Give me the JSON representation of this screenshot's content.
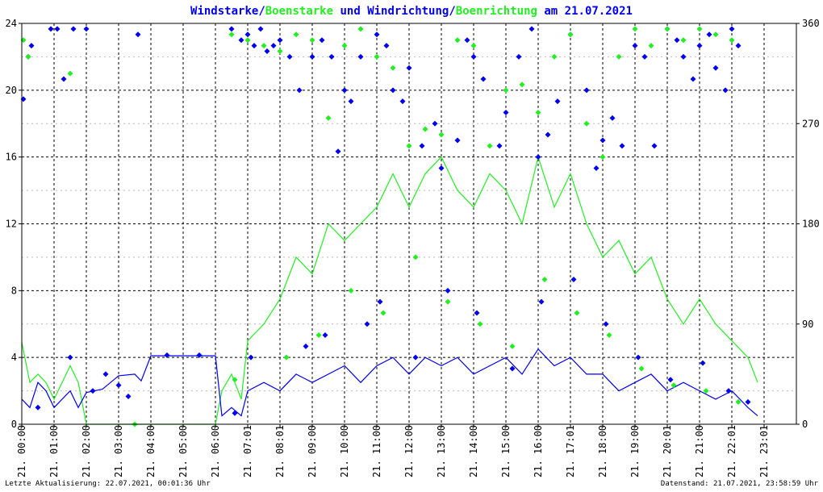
{
  "title": {
    "part1": "Windstarke",
    "sep1": "/",
    "part2": "Boenstarke",
    "mid": " und ",
    "part3": "Windrichtung",
    "sep2": "/",
    "part4": "Boenrichtung",
    "tail": " am 21.07.2021"
  },
  "footer": {
    "left": "Letzte Aktualisierung: 22.07.2021, 00:01:36 Uhr",
    "right": "Datenstand: 21.07.2021, 23:58:59 Uhr"
  },
  "colors": {
    "wind": "#0000ee",
    "gust": "#22ee22",
    "grid": "#000000",
    "background": "#ffffff"
  },
  "chart_data": {
    "type": "line",
    "title": "Windstarke/Boenstarke und Windrichtung/Boenrichtung am 21.07.2021",
    "xlabel": "",
    "ylabel": "",
    "ylim": [
      0,
      24
    ],
    "y2lim": [
      0,
      360
    ],
    "xlim": [
      0,
      24
    ],
    "grid": true,
    "y_ticks": [
      "0",
      "4",
      "8",
      "12",
      "16",
      "20",
      "24"
    ],
    "y2_ticks": [
      "0",
      "90",
      "180",
      "270",
      "360"
    ],
    "x_ticks": [
      "21. 00:00",
      "21. 01:00",
      "21. 02:00",
      "21. 03:00",
      "21. 04:00",
      "21. 05:00",
      "21. 06:00",
      "21. 07:01",
      "21. 08:01",
      "21. 09:00",
      "21. 10:00",
      "21. 11:00",
      "21. 12:00",
      "21. 13:00",
      "21. 14:00",
      "21. 15:00",
      "21. 16:00",
      "21. 17:01",
      "21. 18:00",
      "21. 19:00",
      "21. 20:01",
      "21. 21:00",
      "21. 22:01",
      "21. 23:01"
    ],
    "series": [
      {
        "name": "Windstarke",
        "kind": "line",
        "axis": "left",
        "color": "#0000ee",
        "x": [
          0.0,
          0.25,
          0.5,
          0.75,
          1.0,
          1.25,
          1.5,
          1.75,
          2.0,
          2.5,
          3.0,
          3.5,
          3.7,
          4.0,
          5.0,
          6.0,
          6.2,
          6.5,
          6.8,
          7.0,
          7.5,
          8.0,
          8.5,
          9.0,
          9.5,
          10.0,
          10.5,
          11.0,
          11.5,
          12.0,
          12.5,
          13.0,
          13.5,
          14.0,
          14.5,
          15.0,
          15.5,
          16.0,
          16.5,
          17.0,
          17.5,
          18.0,
          18.5,
          19.0,
          19.5,
          20.0,
          20.5,
          21.0,
          21.5,
          22.0,
          22.5,
          22.8
        ],
        "values": [
          1.5,
          1.0,
          2.5,
          2.0,
          1.0,
          1.5,
          2.0,
          1.0,
          1.9,
          2.1,
          2.9,
          3.0,
          2.6,
          4.1,
          4.1,
          4.1,
          0.5,
          1.0,
          0.5,
          2.0,
          2.5,
          2.0,
          3.0,
          2.5,
          3.0,
          3.5,
          2.5,
          3.5,
          4.0,
          3.0,
          4.0,
          3.5,
          4.0,
          3.0,
          3.5,
          4.0,
          3.0,
          4.5,
          3.5,
          4.0,
          3.0,
          3.0,
          2.0,
          2.5,
          3.0,
          2.0,
          2.5,
          2.0,
          1.5,
          2.0,
          1.0,
          0.5
        ]
      },
      {
        "name": "Boenstarke",
        "kind": "line",
        "axis": "left",
        "color": "#22ee22",
        "x": [
          0.0,
          0.25,
          0.5,
          0.75,
          1.0,
          1.25,
          1.5,
          1.75,
          2.0,
          3.5,
          6.0,
          6.2,
          6.5,
          6.8,
          7.0,
          7.5,
          8.0,
          8.5,
          9.0,
          9.5,
          10.0,
          10.5,
          11.0,
          11.5,
          12.0,
          12.5,
          13.0,
          13.5,
          14.0,
          14.5,
          15.0,
          15.5,
          16.0,
          16.5,
          17.0,
          17.5,
          18.0,
          18.5,
          19.0,
          19.5,
          20.0,
          20.5,
          21.0,
          21.5,
          22.0,
          22.5,
          22.8
        ],
        "values": [
          4.9,
          2.5,
          3.0,
          2.5,
          1.5,
          2.5,
          3.5,
          2.5,
          0.0,
          0.0,
          0.0,
          2.0,
          3.0,
          1.5,
          5.0,
          6.0,
          7.5,
          10.0,
          9.0,
          12.0,
          11.0,
          12.0,
          13.0,
          15.0,
          13.0,
          15.0,
          16.0,
          14.0,
          13.0,
          15.0,
          14.0,
          12.0,
          16.0,
          13.0,
          15.0,
          12.0,
          10.0,
          11.0,
          9.0,
          10.0,
          7.5,
          6.0,
          7.5,
          6.0,
          5.0,
          4.0,
          2.5
        ]
      },
      {
        "name": "Windrichtung",
        "kind": "scatter",
        "axis": "right",
        "color": "#0000ee",
        "x": [
          0.05,
          0.2,
          0.3,
          0.9,
          1.1,
          1.3,
          1.6,
          2.0,
          3.6,
          6.5,
          6.8,
          7.0,
          7.2,
          7.4,
          7.6,
          7.8,
          8.0,
          8.3,
          8.6,
          9.0,
          9.3,
          9.6,
          9.8,
          10.0,
          10.2,
          10.5,
          11.0,
          11.3,
          11.5,
          11.8,
          12.0,
          12.4,
          12.8,
          13.0,
          13.5,
          13.8,
          14.0,
          14.3,
          14.8,
          15.0,
          15.4,
          15.8,
          16.0,
          16.3,
          16.6,
          17.0,
          17.5,
          17.8,
          18.0,
          18.3,
          18.6,
          19.0,
          19.3,
          19.6,
          20.0,
          20.3,
          20.5,
          20.8,
          21.0,
          21.3,
          21.5,
          21.8,
          22.0,
          22.2,
          0.5,
          1.5,
          2.2,
          2.6,
          3.0,
          3.3,
          4.5,
          5.5,
          6.6,
          7.1,
          8.8,
          9.4,
          10.7,
          11.1,
          12.2,
          13.2,
          14.1,
          15.2,
          16.1,
          17.1,
          18.1,
          19.1,
          20.1,
          21.1,
          21.9,
          22.5
        ],
        "values": [
          292,
          330,
          340,
          355,
          355,
          310,
          355,
          355,
          350,
          355,
          345,
          350,
          340,
          355,
          335,
          340,
          345,
          330,
          300,
          330,
          345,
          330,
          245,
          300,
          290,
          330,
          350,
          340,
          300,
          290,
          320,
          250,
          270,
          230,
          255,
          345,
          330,
          310,
          250,
          280,
          330,
          355,
          240,
          260,
          290,
          350,
          300,
          230,
          255,
          275,
          250,
          340,
          330,
          250,
          355,
          345,
          330,
          310,
          340,
          350,
          320,
          300,
          355,
          340,
          15,
          60,
          30,
          45,
          35,
          25,
          62,
          62,
          10,
          60,
          70,
          80,
          90,
          110,
          60,
          120,
          100,
          50,
          110,
          130,
          90,
          60,
          40,
          55,
          30,
          20
        ]
      },
      {
        "name": "Boenrichtung",
        "kind": "scatter",
        "axis": "right",
        "color": "#22ee22",
        "x": [
          0.05,
          0.2,
          1.5,
          3.5,
          6.5,
          7.0,
          7.5,
          8.0,
          8.5,
          9.0,
          9.5,
          10.0,
          10.5,
          11.0,
          11.5,
          12.0,
          12.5,
          13.0,
          13.5,
          14.0,
          14.5,
          15.0,
          15.5,
          16.0,
          16.5,
          17.0,
          17.5,
          18.0,
          18.5,
          19.0,
          19.5,
          20.0,
          20.5,
          21.0,
          21.5,
          22.0,
          6.6,
          8.2,
          9.2,
          10.2,
          11.2,
          12.2,
          13.2,
          14.2,
          15.2,
          16.2,
          17.2,
          18.2,
          19.2,
          20.2,
          21.2,
          22.2
        ],
        "values": [
          345,
          330,
          315,
          0,
          350,
          345,
          340,
          335,
          350,
          345,
          275,
          340,
          355,
          330,
          320,
          250,
          265,
          260,
          345,
          340,
          250,
          300,
          305,
          280,
          330,
          350,
          270,
          240,
          330,
          355,
          340,
          355,
          345,
          355,
          350,
          345,
          40,
          60,
          80,
          120,
          100,
          150,
          110,
          90,
          70,
          130,
          100,
          80,
          50,
          35,
          30,
          20
        ]
      }
    ]
  }
}
